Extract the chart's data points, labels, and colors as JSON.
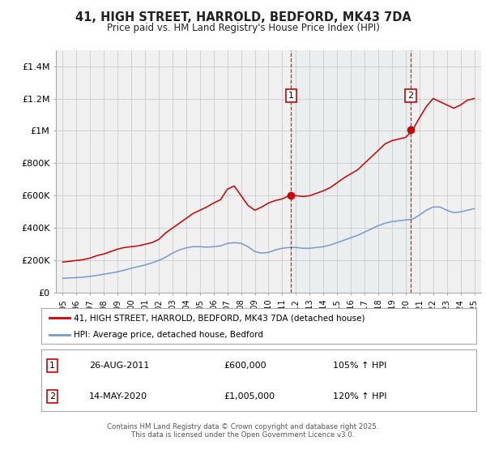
{
  "title": "41, HIGH STREET, HARROLD, BEDFORD, MK43 7DA",
  "subtitle": "Price paid vs. HM Land Registry's House Price Index (HPI)",
  "background_color": "#ffffff",
  "grid_color": "#cccccc",
  "plot_bg_color": "#f0f0f0",
  "red_line_color": "#cc0000",
  "blue_line_color": "#7799cc",
  "ylim": [
    0,
    1500000
  ],
  "yticks": [
    0,
    200000,
    400000,
    600000,
    800000,
    1000000,
    1200000,
    1400000
  ],
  "ytick_labels": [
    "£0",
    "£200K",
    "£400K",
    "£600K",
    "£800K",
    "£1M",
    "£1.2M",
    "£1.4M"
  ],
  "xlim_start": 1994.5,
  "xlim_end": 2025.5,
  "xtick_years": [
    1995,
    1996,
    1997,
    1998,
    1999,
    2000,
    2001,
    2002,
    2003,
    2004,
    2005,
    2006,
    2007,
    2008,
    2009,
    2010,
    2011,
    2012,
    2013,
    2014,
    2015,
    2016,
    2017,
    2018,
    2019,
    2020,
    2021,
    2022,
    2023,
    2024,
    2025
  ],
  "marker1_x": 2011.65,
  "marker1_y": 600000,
  "marker1_label": "1",
  "marker1_date": "26-AUG-2011",
  "marker1_price": "£600,000",
  "marker1_hpi": "105% ↑ HPI",
  "marker2_x": 2020.37,
  "marker2_y": 1005000,
  "marker2_label": "2",
  "marker2_date": "14-MAY-2020",
  "marker2_price": "£1,005,000",
  "marker2_hpi": "120% ↑ HPI",
  "legend_red": "41, HIGH STREET, HARROLD, BEDFORD, MK43 7DA (detached house)",
  "legend_blue": "HPI: Average price, detached house, Bedford",
  "footer": "Contains HM Land Registry data © Crown copyright and database right 2025.\nThis data is licensed under the Open Government Licence v3.0.",
  "red_x": [
    1995.0,
    1995.5,
    1996.0,
    1996.5,
    1997.0,
    1997.5,
    1998.0,
    1998.5,
    1999.0,
    1999.5,
    2000.0,
    2000.5,
    2001.0,
    2001.5,
    2002.0,
    2002.5,
    2003.0,
    2003.5,
    2004.0,
    2004.5,
    2005.0,
    2005.5,
    2006.0,
    2006.5,
    2007.0,
    2007.5,
    2008.0,
    2008.5,
    2009.0,
    2009.5,
    2010.0,
    2010.5,
    2011.0,
    2011.5,
    2012.0,
    2012.5,
    2013.0,
    2013.5,
    2014.0,
    2014.5,
    2015.0,
    2015.5,
    2016.0,
    2016.5,
    2017.0,
    2017.5,
    2018.0,
    2018.5,
    2019.0,
    2019.5,
    2020.0,
    2020.5,
    2021.0,
    2021.5,
    2022.0,
    2022.5,
    2023.0,
    2023.5,
    2024.0,
    2024.5,
    2025.0
  ],
  "red_y": [
    190000,
    195000,
    200000,
    205000,
    215000,
    230000,
    240000,
    255000,
    270000,
    280000,
    285000,
    290000,
    300000,
    310000,
    330000,
    370000,
    400000,
    430000,
    460000,
    490000,
    510000,
    530000,
    555000,
    575000,
    640000,
    660000,
    600000,
    540000,
    510000,
    530000,
    555000,
    570000,
    580000,
    600000,
    600000,
    595000,
    600000,
    615000,
    630000,
    650000,
    680000,
    710000,
    735000,
    760000,
    800000,
    840000,
    880000,
    920000,
    940000,
    950000,
    960000,
    1005000,
    1080000,
    1150000,
    1200000,
    1180000,
    1160000,
    1140000,
    1160000,
    1190000,
    1200000
  ],
  "blue_x": [
    1995.0,
    1995.5,
    1996.0,
    1996.5,
    1997.0,
    1997.5,
    1998.0,
    1998.5,
    1999.0,
    1999.5,
    2000.0,
    2000.5,
    2001.0,
    2001.5,
    2002.0,
    2002.5,
    2003.0,
    2003.5,
    2004.0,
    2004.5,
    2005.0,
    2005.5,
    2006.0,
    2006.5,
    2007.0,
    2007.5,
    2008.0,
    2008.5,
    2009.0,
    2009.5,
    2010.0,
    2010.5,
    2011.0,
    2011.5,
    2012.0,
    2012.5,
    2013.0,
    2013.5,
    2014.0,
    2014.5,
    2015.0,
    2015.5,
    2016.0,
    2016.5,
    2017.0,
    2017.5,
    2018.0,
    2018.5,
    2019.0,
    2019.5,
    2020.0,
    2020.5,
    2021.0,
    2021.5,
    2022.0,
    2022.5,
    2023.0,
    2023.5,
    2024.0,
    2024.5,
    2025.0
  ],
  "blue_y": [
    90000,
    92000,
    94000,
    97000,
    102000,
    108000,
    115000,
    122000,
    130000,
    140000,
    152000,
    162000,
    172000,
    185000,
    200000,
    220000,
    245000,
    265000,
    278000,
    285000,
    285000,
    282000,
    285000,
    290000,
    305000,
    310000,
    305000,
    285000,
    255000,
    245000,
    250000,
    265000,
    275000,
    280000,
    280000,
    275000,
    275000,
    280000,
    285000,
    295000,
    310000,
    325000,
    340000,
    355000,
    375000,
    395000,
    415000,
    430000,
    440000,
    445000,
    450000,
    455000,
    480000,
    510000,
    530000,
    530000,
    510000,
    495000,
    500000,
    510000,
    520000
  ]
}
